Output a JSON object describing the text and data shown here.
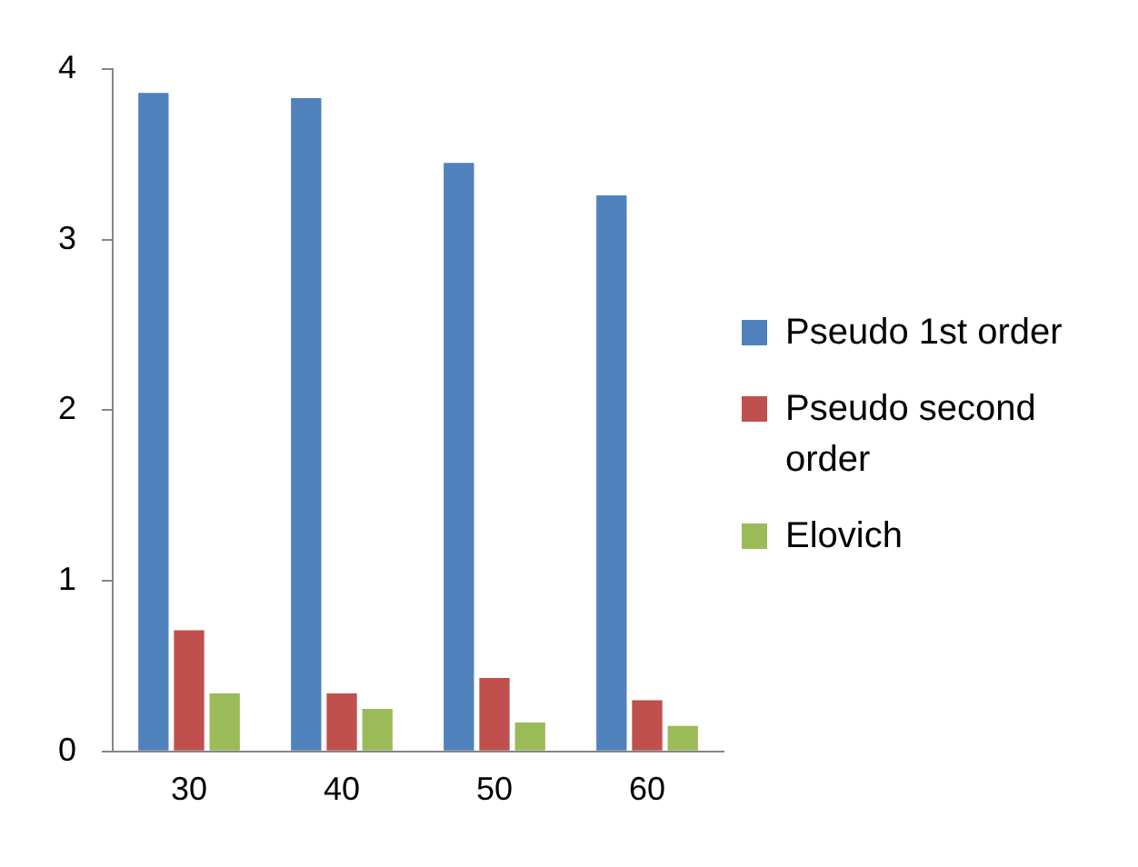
{
  "chart_data": {
    "type": "bar",
    "categories": [
      "30",
      "40",
      "50",
      "60"
    ],
    "series": [
      {
        "name": "Pseudo 1st order",
        "color": "#4f81bd",
        "values": [
          3.86,
          3.83,
          3.45,
          3.26
        ]
      },
      {
        "name": "Pseudo second order",
        "color": "#c0504d",
        "values": [
          0.71,
          0.34,
          0.43,
          0.3
        ]
      },
      {
        "name": "Elovich",
        "color": "#9bbb59",
        "values": [
          0.34,
          0.25,
          0.17,
          0.15
        ]
      }
    ],
    "ylim": [
      0,
      4
    ],
    "yticks": [
      0,
      1,
      2,
      3,
      4
    ],
    "grid": false,
    "legend": "right"
  }
}
